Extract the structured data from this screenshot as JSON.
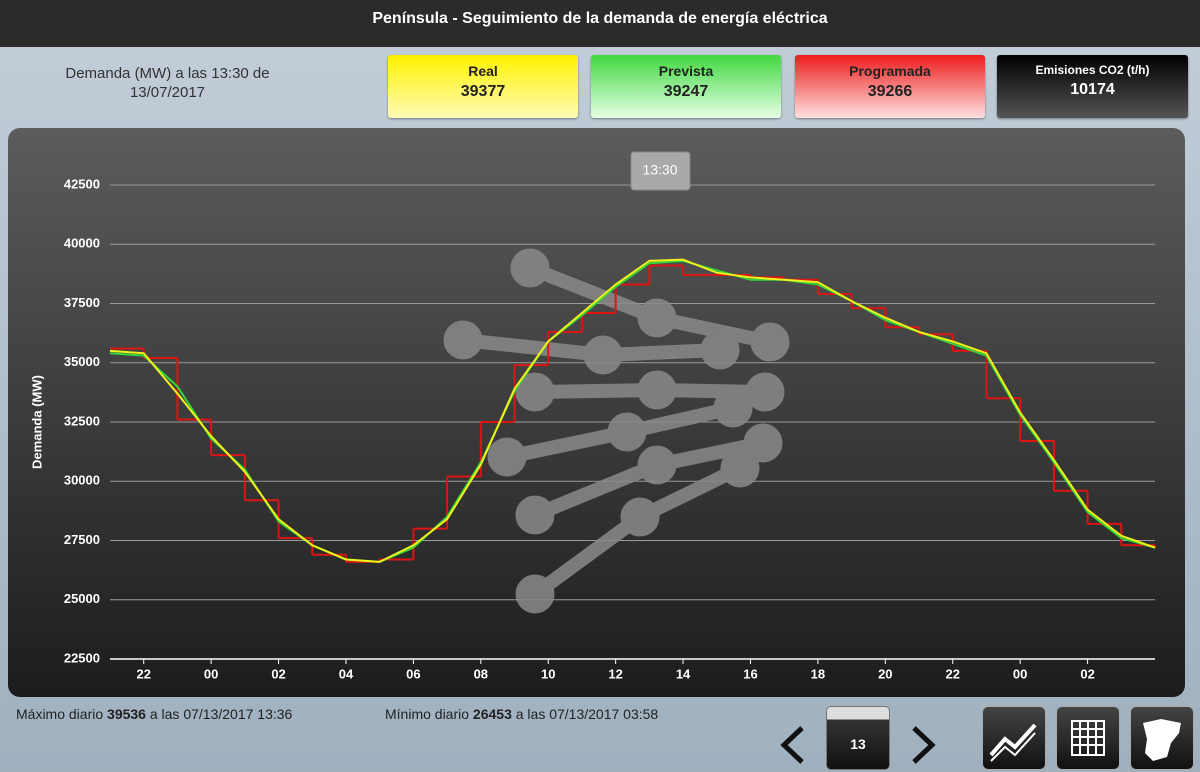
{
  "header": {
    "title": "Península - Seguimiento de la demanda de energía eléctrica"
  },
  "summary": {
    "caption": "Demanda (MW) a las 13:30 de 13/07/2017",
    "values": [
      39377,
      39247,
      39266
    ],
    "co2_label": "Emisiones CO2 (t/h)",
    "co2_value": 10174
  },
  "chart_data": {
    "type": "line",
    "y_label": "Demanda (MW)",
    "tooltip": "13:30",
    "x": [
      21,
      22,
      23,
      24,
      25,
      26,
      27,
      28,
      29,
      30,
      31,
      32,
      33,
      34,
      35,
      36,
      37,
      38,
      39,
      40,
      41,
      42,
      43,
      44,
      45,
      46,
      47,
      48,
      49,
      50,
      51,
      52
    ],
    "series": [
      {
        "name": "Real",
        "color": "#f2f21a",
        "values": [
          35500,
          35400,
          33700,
          31900,
          30400,
          28400,
          27300,
          26700,
          26600,
          27300,
          28400,
          30700,
          33900,
          35900,
          37100,
          38300,
          39300,
          39350,
          38800,
          38600,
          38500,
          38400,
          37600,
          36900,
          36300,
          35900,
          35400,
          32900,
          30900,
          28800,
          27700,
          27200
        ]
      },
      {
        "name": "Prevista",
        "color": "#35d43a",
        "values": [
          35400,
          35300,
          34000,
          31800,
          30500,
          28300,
          27300,
          26700,
          26600,
          27200,
          28500,
          30800,
          33800,
          35900,
          37000,
          38200,
          39200,
          39300,
          38900,
          38500,
          38500,
          38300,
          37600,
          36800,
          36300,
          35800,
          35300,
          32800,
          30800,
          28700,
          27600,
          27200
        ]
      },
      {
        "name": "Programada",
        "color": "#dd1414",
        "step": true,
        "values": [
          35600,
          35200,
          32600,
          31100,
          29200,
          27600,
          26900,
          26600,
          26700,
          28000,
          30200,
          32500,
          34900,
          36300,
          37100,
          38300,
          39100,
          38700,
          38700,
          38600,
          38500,
          37900,
          37300,
          36500,
          36200,
          35500,
          33500,
          31700,
          29600,
          28200,
          27300,
          27200
        ]
      }
    ],
    "xlim": [
      21,
      52
    ],
    "ylim": [
      22500,
      42500
    ],
    "xticks": [
      {
        "value": 22,
        "label": "22"
      },
      {
        "value": 24,
        "label": "00"
      },
      {
        "value": 26,
        "label": "02"
      },
      {
        "value": 28,
        "label": "04"
      },
      {
        "value": 30,
        "label": "06"
      },
      {
        "value": 32,
        "label": "08"
      },
      {
        "value": 34,
        "label": "10"
      },
      {
        "value": 36,
        "label": "12"
      },
      {
        "value": 38,
        "label": "14"
      },
      {
        "value": 40,
        "label": "16"
      },
      {
        "value": 42,
        "label": "18"
      },
      {
        "value": 44,
        "label": "20"
      },
      {
        "value": 46,
        "label": "22"
      },
      {
        "value": 48,
        "label": "00"
      },
      {
        "value": 50,
        "label": "02"
      }
    ],
    "yticks": [
      22500,
      25000,
      27500,
      30000,
      32500,
      35000,
      37500,
      40000,
      42500
    ],
    "grid": true
  },
  "footer": {
    "max_label": "Máximo diario",
    "max_value": 39536,
    "max_when": "a las 07/13/2017 13:36",
    "min_label": "Mínimo diario",
    "min_value": 26453,
    "min_when": "a las 07/13/2017 03:58"
  },
  "nav": {
    "day": "13"
  }
}
